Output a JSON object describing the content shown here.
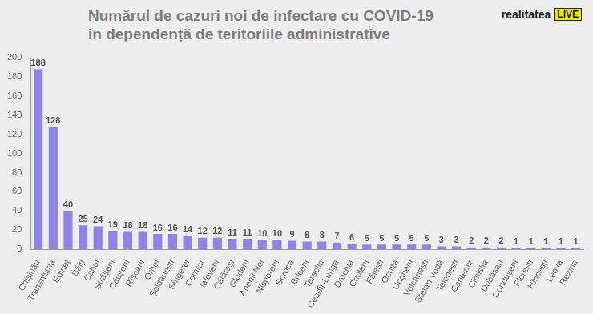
{
  "chart_data": {
    "type": "bar",
    "title": [
      "Numărul de cazuri noi de infectare cu COVID-19",
      "în dependență de teritoriile administrative"
    ],
    "annotations": [
      "realitatea",
      "LIVE"
    ],
    "categories": [
      "Chișinău",
      "Transnistria",
      "Edineț",
      "Bălți",
      "Cahul",
      "Strășeni",
      "Căușeni",
      "Rîșcani",
      "Orhei",
      "Șoldănești",
      "Sîngerei",
      "Comrat",
      "Ialoveni",
      "Călărași",
      "Glodeni",
      "Anenii Noi",
      "Nisporeni",
      "Soroca",
      "Briceni",
      "Taraclia",
      "Ceadîr-Lunga",
      "Drochia",
      "Criuleni",
      "Fălești",
      "Ocnița",
      "Ungheni",
      "Vulcănești",
      "Ștefan Vodă",
      "Telenești",
      "Cantemir",
      "Cimișlia",
      "Dubăsari",
      "Dondușeni",
      "Florești",
      "Hîncești",
      "Leova",
      "Rezina"
    ],
    "values": [
      188,
      128,
      40,
      25,
      24,
      19,
      18,
      18,
      16,
      16,
      14,
      12,
      12,
      11,
      11,
      10,
      10,
      9,
      8,
      8,
      7,
      6,
      5,
      5,
      5,
      5,
      5,
      3,
      3,
      2,
      2,
      2,
      1,
      1,
      1,
      1,
      1
    ],
    "color": "#8f84e3",
    "ylim": [
      0,
      200
    ],
    "yticks": [
      0,
      20,
      40,
      60,
      80,
      100,
      120,
      140,
      160,
      180,
      200
    ],
    "grid": false,
    "data_labels": true
  }
}
